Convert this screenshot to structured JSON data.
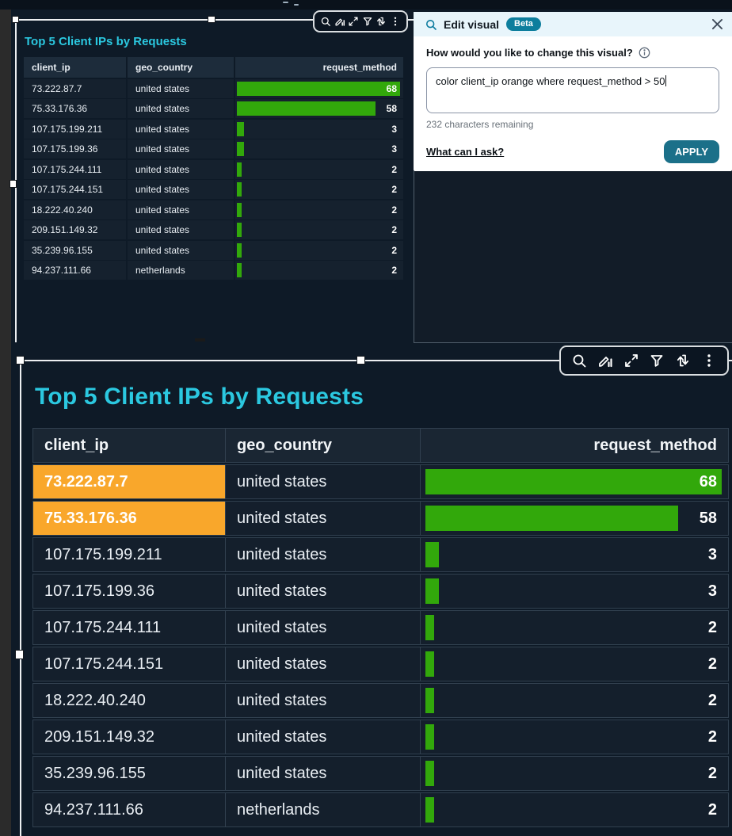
{
  "toolbar": {
    "icons": [
      "search",
      "edit-visual",
      "maximize",
      "filter",
      "swap",
      "more"
    ]
  },
  "edit_panel": {
    "title": "Edit visual",
    "badge": "Beta",
    "question": "How would you like to change this visual?",
    "prompt_value": "color client_ip orange where request_method > 50",
    "chars_hint": "232 characters remaining",
    "help_link": "What can I ask?",
    "apply_label": "APPLY"
  },
  "visual_small": {
    "title": "Top 5 Client IPs by Requests"
  },
  "visual_large": {
    "title": "Top 5 Client IPs by Requests"
  },
  "table": {
    "columns": [
      "client_ip",
      "geo_country",
      "request_method"
    ],
    "max_value": 68,
    "rows": [
      {
        "client_ip": "73.222.87.7",
        "geo_country": "united states",
        "request_method": 68,
        "highlight": true
      },
      {
        "client_ip": "75.33.176.36",
        "geo_country": "united states",
        "request_method": 58,
        "highlight": true
      },
      {
        "client_ip": "107.175.199.211",
        "geo_country": "united states",
        "request_method": 3,
        "highlight": false
      },
      {
        "client_ip": "107.175.199.36",
        "geo_country": "united states",
        "request_method": 3,
        "highlight": false
      },
      {
        "client_ip": "107.175.244.111",
        "geo_country": "united states",
        "request_method": 2,
        "highlight": false
      },
      {
        "client_ip": "107.175.244.151",
        "geo_country": "united states",
        "request_method": 2,
        "highlight": false
      },
      {
        "client_ip": "18.222.40.240",
        "geo_country": "united states",
        "request_method": 2,
        "highlight": false
      },
      {
        "client_ip": "209.151.149.32",
        "geo_country": "united states",
        "request_method": 2,
        "highlight": false
      },
      {
        "client_ip": "35.239.96.155",
        "geo_country": "united states",
        "request_method": 2,
        "highlight": false
      },
      {
        "client_ip": "94.237.111.66",
        "geo_country": "netherlands",
        "request_method": 2,
        "highlight": false
      }
    ]
  },
  "colors": {
    "accent_cyan": "#2BC8E0",
    "bar_green": "#32A80B",
    "highlight_orange": "#F9A72B",
    "badge_teal": "#0D7E9D",
    "apply_button": "#1B7089",
    "panel_header": "#E8F5FB",
    "background": "#0E1A27"
  }
}
